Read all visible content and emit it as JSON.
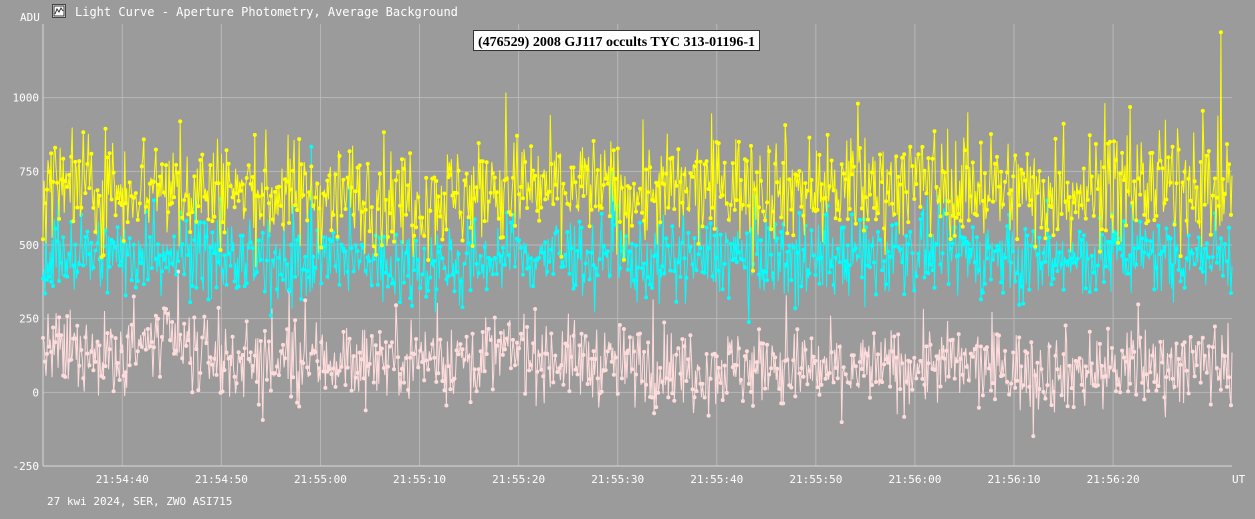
{
  "window": {
    "title": "Light Curve - Aperture Photometry, Average Background",
    "icon": "light-curve-app-icon"
  },
  "footer": {
    "caption": "27 kwi 2024, SER, ZWO ASI715"
  },
  "chart_data": {
    "type": "line",
    "title": "(476529) 2008 GJ117 occults TYC 313-01196-1",
    "ylabel": "ADU",
    "xlabel": "UT",
    "ylim": [
      -250,
      1250
    ],
    "xlim": [
      "21:54:32",
      "21:56:32"
    ],
    "y_ticks": [
      -250,
      0,
      250,
      500,
      750,
      1000
    ],
    "y_tick_labels": [
      "-250",
      "0",
      "250",
      "500",
      "750",
      "1000"
    ],
    "x_ticks": [
      "21:54:40",
      "21:54:50",
      "21:55:00",
      "21:55:10",
      "21:55:20",
      "21:55:30",
      "21:55:40",
      "21:55:50",
      "21:56:00",
      "21:56:10",
      "21:56:20"
    ],
    "grid": true,
    "colors": {
      "background": "#9b9b9b",
      "grid": "#b8b8b8",
      "axis": "#d8d8d8"
    },
    "series": [
      {
        "color": "#ffff00",
        "x": [
          "21:54:32",
          "21:54:38",
          "21:54:44",
          "21:54:50",
          "21:54:56",
          "21:55:02",
          "21:55:08",
          "21:55:14",
          "21:55:20",
          "21:55:26",
          "21:55:32",
          "21:55:38",
          "21:55:44",
          "21:55:50",
          "21:55:56",
          "21:56:02",
          "21:56:08",
          "21:56:14",
          "21:56:20",
          "21:56:26",
          "21:56:32"
        ],
        "values": [
          700,
          690,
          705,
          680,
          670,
          675,
          660,
          665,
          690,
          700,
          670,
          685,
          710,
          690,
          700,
          720,
          690,
          675,
          700,
          705,
          700
        ],
        "spread": 120
      },
      {
        "color": "#00ffff",
        "x": [
          "21:54:32",
          "21:54:38",
          "21:54:44",
          "21:54:50",
          "21:54:56",
          "21:55:02",
          "21:55:08",
          "21:55:14",
          "21:55:20",
          "21:55:26",
          "21:55:32",
          "21:55:38",
          "21:55:44",
          "21:55:50",
          "21:55:56",
          "21:56:02",
          "21:56:08",
          "21:56:14",
          "21:56:20",
          "21:56:26",
          "21:56:32"
        ],
        "values": [
          470,
          460,
          480,
          455,
          440,
          445,
          430,
          440,
          460,
          470,
          440,
          455,
          470,
          450,
          465,
          480,
          460,
          440,
          460,
          470,
          465
        ],
        "spread": 90
      },
      {
        "color": "#ffdcdc",
        "x": [
          "21:54:32",
          "21:54:38",
          "21:54:44",
          "21:54:50",
          "21:54:56",
          "21:55:02",
          "21:55:08",
          "21:55:14",
          "21:55:20",
          "21:55:26",
          "21:55:32",
          "21:55:38",
          "21:55:44",
          "21:55:50",
          "21:55:56",
          "21:56:02",
          "21:56:08",
          "21:56:14",
          "21:56:20",
          "21:56:26",
          "21:56:32"
        ],
        "values": [
          140,
          120,
          170,
          110,
          100,
          110,
          120,
          115,
          140,
          105,
          90,
          80,
          85,
          75,
          80,
          95,
          80,
          70,
          80,
          95,
          100
        ],
        "spread": 90
      }
    ]
  }
}
